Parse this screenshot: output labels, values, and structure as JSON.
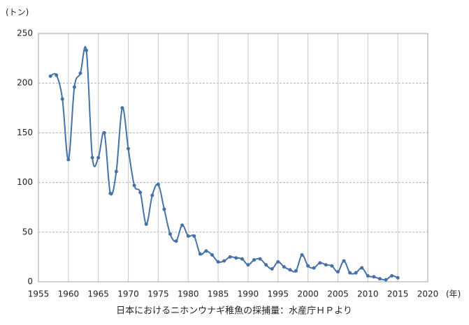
{
  "chart_data": {
    "type": "line",
    "y_axis_label": "(トン)",
    "x_axis_label": "(年)",
    "caption": "日本におけるニホンウナギ稚魚の採捕量：水産庁ＨＰより",
    "x": [
      1957,
      1958,
      1959,
      1960,
      1961,
      1962,
      1963,
      1964,
      1965,
      1966,
      1967,
      1968,
      1969,
      1970,
      1971,
      1972,
      1973,
      1974,
      1975,
      1976,
      1977,
      1978,
      1979,
      1980,
      1981,
      1982,
      1983,
      1984,
      1985,
      1986,
      1987,
      1988,
      1989,
      1990,
      1991,
      1992,
      1993,
      1994,
      1995,
      1996,
      1997,
      1998,
      1999,
      2000,
      2001,
      2002,
      2003,
      2004,
      2005,
      2006,
      2007,
      2008,
      2009,
      2010,
      2011,
      2012,
      2013,
      2014,
      2015
    ],
    "series": [
      {
        "color": "#4472a8",
        "values": [
          207,
          208,
          184,
          123,
          196,
          210,
          233,
          125,
          125,
          150,
          89,
          111,
          175,
          134,
          97,
          90,
          58,
          87,
          98,
          73,
          48,
          41,
          57,
          46,
          46,
          28,
          31,
          27,
          20,
          21,
          25,
          24,
          23,
          17,
          22,
          23,
          17,
          13,
          20,
          15,
          12,
          11,
          27,
          16,
          14,
          19,
          17,
          16,
          10,
          21,
          9,
          9,
          14,
          6,
          5,
          3,
          2,
          6,
          4
        ]
      }
    ],
    "xlim": [
      1955,
      2020
    ],
    "xticks": [
      1955,
      1960,
      1965,
      1970,
      1975,
      1980,
      1985,
      1990,
      1995,
      2000,
      2005,
      2010,
      2015,
      2020
    ],
    "ylim": [
      0,
      250
    ],
    "yticks": [
      0,
      50,
      100,
      150,
      200,
      250
    ],
    "grid": true
  }
}
